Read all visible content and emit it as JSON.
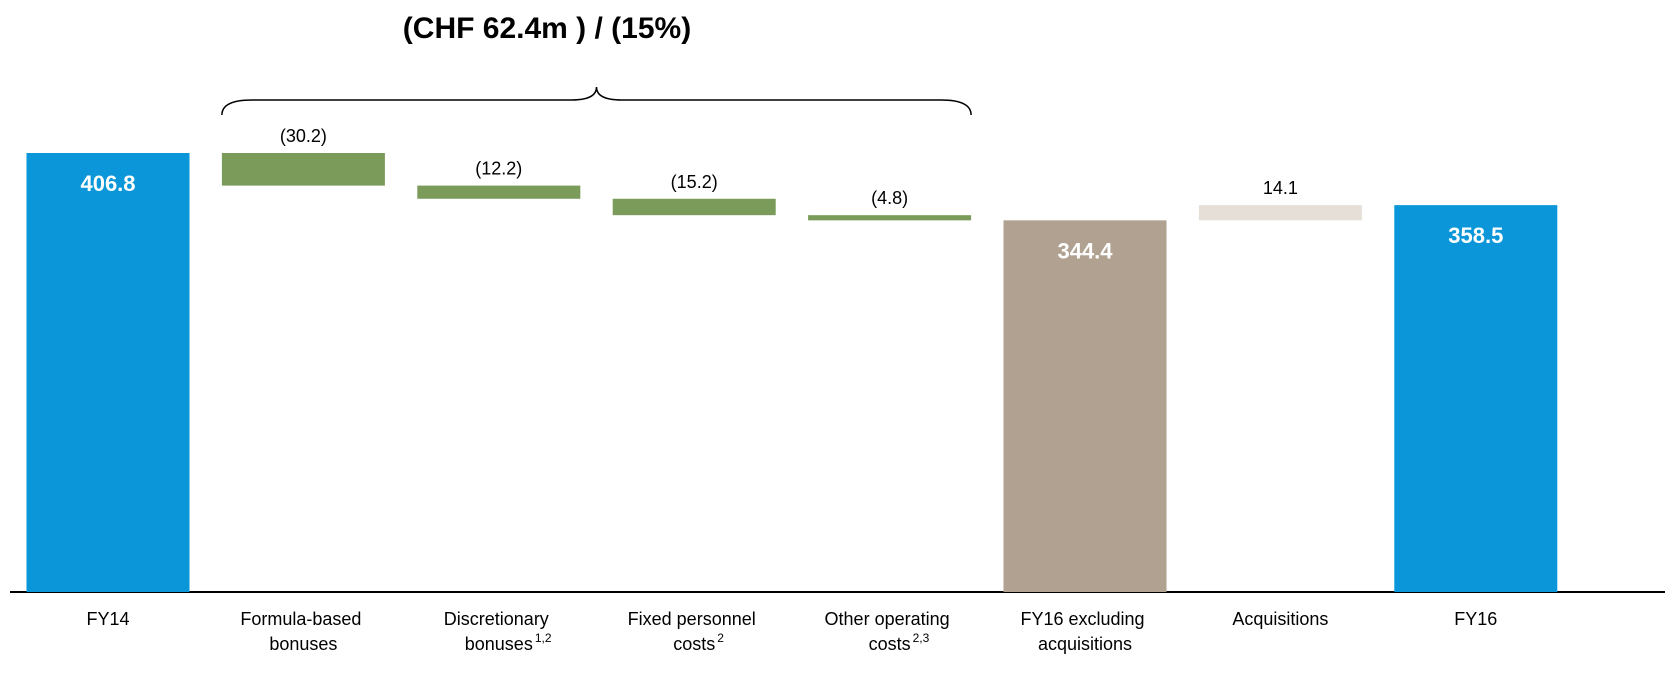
{
  "chart_data": {
    "type": "waterfall",
    "categories": [
      "FY14",
      "Formula-based bonuses",
      "Discretionary bonuses",
      "Fixed personnel costs",
      "Other operating costs",
      "FY16 excluding acquisitions",
      "Acquisitions",
      "FY16"
    ],
    "category_notes": [
      null,
      null,
      "1,2",
      "2",
      "2,3",
      null,
      null,
      null
    ],
    "values": [
      406.8,
      -30.2,
      -12.2,
      -15.2,
      -4.8,
      344.4,
      14.1,
      358.5
    ],
    "value_labels": [
      "406.8",
      "(30.2)",
      "(12.2)",
      "(15.2)",
      "(4.8)",
      "344.4",
      "14.1",
      "358.5"
    ],
    "kinds": [
      "total",
      "delta",
      "delta",
      "delta",
      "delta",
      "total",
      "delta",
      "total"
    ],
    "colors": [
      "#0a96d8",
      "#7b9b5a",
      "#7b9b5a",
      "#7b9b5a",
      "#7b9b5a",
      "#b0a190",
      "#e6dfd8",
      "#0a96d8"
    ],
    "ylim": [
      0,
      455
    ],
    "annotation": {
      "text": "(CHF 62.4m ) / (15%)",
      "from": 1,
      "to": 4
    }
  }
}
